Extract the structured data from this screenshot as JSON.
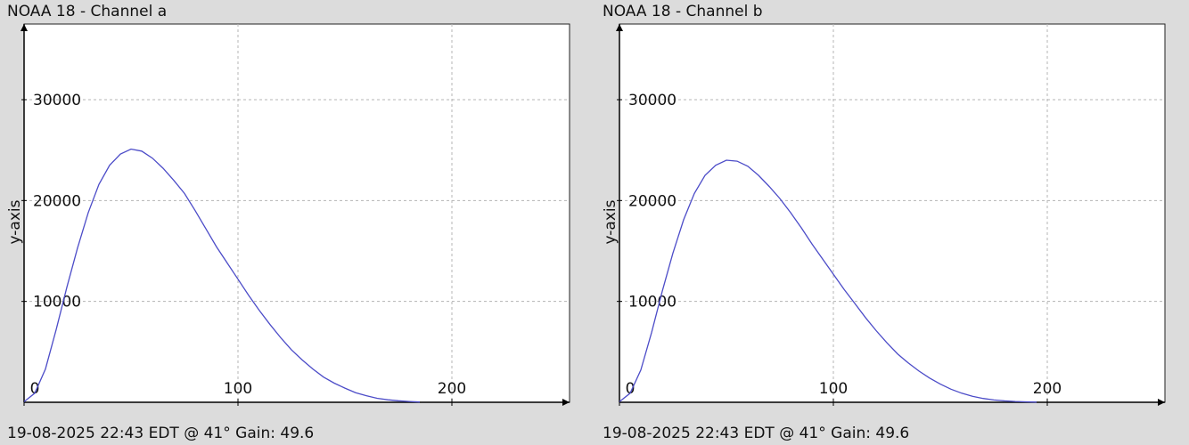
{
  "charts": [
    {
      "id": "a",
      "title": "NOAA 18 - Channel a",
      "footer": "19-08-2025 22:43 EDT @ 41° Gain: 49.6",
      "colors": {
        "line": "#4c4cc8",
        "grid": "#b4b4b4",
        "background": "#ffffff"
      }
    },
    {
      "id": "b",
      "title": "NOAA 18 - Channel b",
      "footer": "19-08-2025 22:43 EDT @ 41° Gain: 49.6",
      "colors": {
        "line": "#4c4cc8",
        "grid": "#b4b4b4",
        "background": "#ffffff"
      }
    }
  ],
  "chart_data": [
    {
      "type": "line",
      "title": "NOAA 18 - Channel a",
      "xlabel": "",
      "ylabel": "y-axis",
      "xlim": [
        0,
        255
      ],
      "ylim": [
        0,
        37500
      ],
      "xticks": [
        0,
        100,
        200
      ],
      "yticks": [
        10000,
        20000,
        30000
      ],
      "grid": true,
      "series": [
        {
          "x": [
            0,
            5,
            10,
            15,
            20,
            25,
            30,
            35,
            40,
            45,
            50,
            55,
            60,
            65,
            70,
            75,
            80,
            85,
            90,
            95,
            100,
            105,
            110,
            115,
            120,
            125,
            130,
            135,
            140,
            145,
            150,
            155,
            160,
            165,
            170,
            175,
            180,
            185
          ],
          "y": [
            50,
            900,
            3300,
            7200,
            11400,
            15300,
            18800,
            21600,
            23500,
            24600,
            25100,
            24900,
            24200,
            23200,
            22000,
            20700,
            19000,
            17200,
            15400,
            13800,
            12200,
            10600,
            9100,
            7700,
            6400,
            5200,
            4200,
            3300,
            2500,
            1900,
            1400,
            950,
            650,
            400,
            250,
            150,
            80,
            30
          ]
        }
      ]
    },
    {
      "type": "line",
      "title": "NOAA 18 - Channel b",
      "xlabel": "",
      "ylabel": "y-axis",
      "xlim": [
        0,
        255
      ],
      "ylim": [
        0,
        37500
      ],
      "xticks": [
        0,
        100,
        200
      ],
      "yticks": [
        10000,
        20000,
        30000
      ],
      "grid": true,
      "series": [
        {
          "x": [
            0,
            5,
            10,
            15,
            20,
            25,
            30,
            35,
            40,
            45,
            50,
            55,
            60,
            65,
            70,
            75,
            80,
            85,
            90,
            95,
            100,
            105,
            110,
            115,
            120,
            125,
            130,
            135,
            140,
            145,
            150,
            155,
            160,
            165,
            170,
            175,
            180,
            185,
            190,
            195
          ],
          "y": [
            50,
            900,
            3200,
            6900,
            11000,
            14800,
            18100,
            20700,
            22500,
            23500,
            24000,
            23900,
            23400,
            22500,
            21400,
            20200,
            18800,
            17300,
            15700,
            14200,
            12700,
            11200,
            9800,
            8400,
            7100,
            5900,
            4800,
            3900,
            3100,
            2400,
            1800,
            1300,
            900,
            600,
            380,
            230,
            140,
            80,
            40,
            20
          ]
        }
      ]
    }
  ]
}
